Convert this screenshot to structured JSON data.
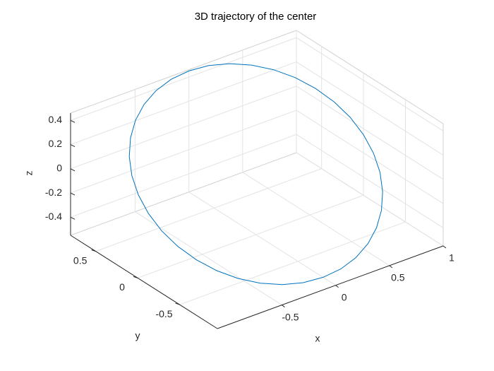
{
  "chart_data": {
    "type": "line3d",
    "title": "3D trajectory of the center",
    "x_label": "x",
    "y_label": "y",
    "z_label": "z",
    "xlim": [
      -1.1,
      1
    ],
    "ylim": [
      -0.95,
      0.8
    ],
    "zlim": [
      -0.55,
      0.46
    ],
    "xticks": [
      -0.5,
      0,
      0.5,
      1
    ],
    "yticks": [
      -0.5,
      0,
      0.5
    ],
    "zticks": [
      -0.4,
      -0.2,
      0,
      0.2,
      0.4
    ],
    "grid": true,
    "series": [
      {
        "color": "#0072bd",
        "x": [
          1,
          0.985,
          0.94,
          0.866,
          0.766,
          0.643,
          0.5,
          0.342,
          0.174,
          0,
          -0.174,
          -0.342,
          -0.5,
          -0.643,
          -0.766,
          -0.866,
          -0.94,
          -0.985,
          -1,
          -0.985,
          -0.94,
          -0.866,
          -0.766,
          -0.643,
          -0.5,
          -0.342,
          -0.174,
          0,
          0.174,
          0.342,
          0.5,
          0.643,
          0.766,
          0.866,
          0.94,
          0.985,
          1
        ],
        "y": [
          0,
          0.139,
          0.274,
          0.4,
          0.514,
          0.613,
          0.693,
          0.752,
          0.788,
          0.8,
          0.788,
          0.752,
          0.693,
          0.613,
          0.514,
          0.4,
          0.274,
          0.139,
          0,
          -0.139,
          -0.274,
          -0.4,
          -0.514,
          -0.613,
          -0.693,
          -0.752,
          -0.788,
          -0.8,
          -0.788,
          -0.752,
          -0.693,
          -0.613,
          -0.514,
          -0.4,
          -0.274,
          -0.139,
          0
        ],
        "z": [
          -0.05,
          0.037,
          0.121,
          0.2,
          0.272,
          0.333,
          0.383,
          0.42,
          0.443,
          0.45,
          0.443,
          0.42,
          0.383,
          0.333,
          0.272,
          0.2,
          0.121,
          0.037,
          -0.05,
          -0.137,
          -0.221,
          -0.3,
          -0.372,
          -0.433,
          -0.483,
          -0.52,
          -0.543,
          -0.55,
          -0.543,
          -0.52,
          -0.483,
          -0.433,
          -0.372,
          -0.3,
          -0.221,
          -0.137,
          -0.05
        ]
      }
    ]
  }
}
